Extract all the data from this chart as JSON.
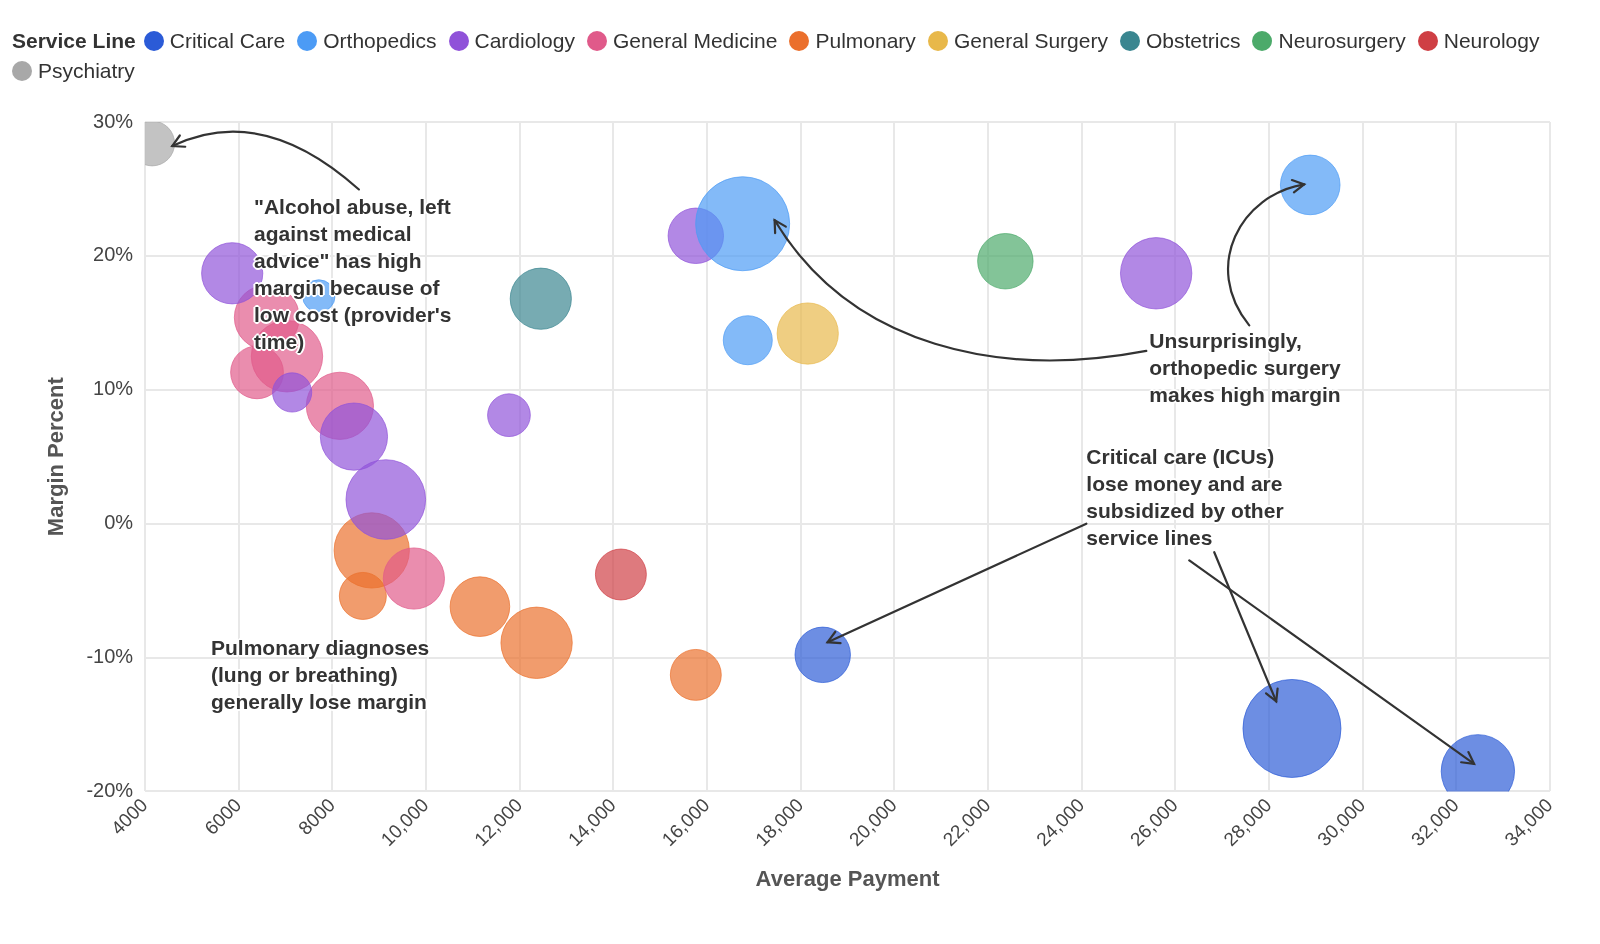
{
  "chart_data": {
    "type": "bubble",
    "xlabel": "Average Payment",
    "ylabel": "Margin Percent",
    "legend_title": "Service Line",
    "legend": "top left",
    "grid": true,
    "xlim": [
      4000,
      34000
    ],
    "xticks": [
      4000,
      6000,
      8000,
      {
        "value": 10000,
        "label": "10,000"
      },
      {
        "value": 12000,
        "label": "12,000"
      },
      {
        "value": 14000,
        "label": "14,000"
      },
      {
        "value": 16000,
        "label": "16,000"
      },
      {
        "value": 18000,
        "label": "18,000"
      },
      {
        "value": 20000,
        "label": "20,000"
      },
      {
        "value": 22000,
        "label": "22,000"
      },
      {
        "value": 24000,
        "label": "24,000"
      },
      {
        "value": 26000,
        "label": "26,000"
      },
      {
        "value": 28000,
        "label": "28,000"
      },
      {
        "value": 30000,
        "label": "30,000"
      },
      {
        "value": 32000,
        "label": "32,000"
      },
      {
        "value": 34000,
        "label": "34,000"
      }
    ],
    "ylim": [
      -20,
      30
    ],
    "yticks": [
      {
        "value": -20,
        "label": "-20%"
      },
      {
        "value": -10,
        "label": "-10%"
      },
      {
        "value": 0,
        "label": "0%"
      },
      {
        "value": 10,
        "label": "10%"
      },
      {
        "value": 20,
        "label": "20%"
      },
      {
        "value": 30,
        "label": "30%"
      }
    ],
    "series": [
      {
        "name": "Critical Care",
        "color": "#2b5bd7",
        "x": [
          18470,
          28490,
          32460
        ],
        "values": [
          -9.8,
          -15.3,
          -18.5
        ],
        "sizes": [
          0.32,
          1,
          0.56
        ]
      },
      {
        "name": "Orthopedics",
        "color": "#4c9bf5",
        "x": [
          16760,
          28880,
          16870,
          7710
        ],
        "values": [
          22.4,
          25.3,
          13.7,
          17.0
        ],
        "sizes": [
          0.92,
          0.37,
          0.25,
          0.11
        ]
      },
      {
        "name": "Cardiology",
        "color": "#9052d9",
        "x": [
          5860,
          15760,
          25590,
          11770,
          7140,
          8460,
          9140
        ],
        "values": [
          18.7,
          21.5,
          18.7,
          8.1,
          9.8,
          6.5,
          1.8
        ],
        "sizes": [
          0.39,
          0.32,
          0.53,
          0.19,
          0.16,
          0.47,
          0.66
        ]
      },
      {
        "name": "General Medicine",
        "color": "#e05a8a",
        "x": [
          6600,
          7030,
          6390,
          8160,
          9740
        ],
        "values": [
          15.4,
          12.5,
          11.3,
          8.8,
          -4.1
        ],
        "sizes": [
          0.44,
          0.53,
          0.29,
          0.47,
          0.39
        ]
      },
      {
        "name": "Pulmonary",
        "color": "#eb6f2c",
        "x": [
          8840,
          8650,
          11150,
          12360,
          15760
        ],
        "values": [
          -2.0,
          -5.4,
          -6.2,
          -8.9,
          -11.3
        ],
        "sizes": [
          0.59,
          0.23,
          0.37,
          0.53,
          0.27
        ]
      },
      {
        "name": "General Surgery",
        "color": "#e8b84a",
        "x": [
          18150
        ],
        "values": [
          14.2
        ],
        "sizes": [
          0.39
        ]
      },
      {
        "name": "Obstetrics",
        "color": "#3a8690",
        "x": [
          12450
        ],
        "values": [
          16.8
        ],
        "sizes": [
          0.39
        ]
      },
      {
        "name": "Neurosurgery",
        "color": "#4caa6a",
        "x": [
          22370
        ],
        "values": [
          19.6
        ],
        "sizes": [
          0.32
        ]
      },
      {
        "name": "Neurology",
        "color": "#cf3f44",
        "x": [
          14160
        ],
        "values": [
          -3.8
        ],
        "sizes": [
          0.27
        ]
      },
      {
        "name": "Psychiatry",
        "color": "#a8a8a8",
        "x": [
          4150
        ],
        "values": [
          28.4
        ],
        "sizes": [
          0.21
        ]
      }
    ],
    "annotations": [
      {
        "text": "\"Alcohol abuse, left against medical advice\" has high margin because of low cost (provider's time)",
        "x": 4580,
        "y": 28.2
      },
      "Unsurprisingly, orthopedic surgery makes high margin",
      "Critical care (ICUs) lose money and are subsidized by other service lines",
      "Pulmonary diagnoses (lung or breathing) generally lose margin"
    ]
  }
}
